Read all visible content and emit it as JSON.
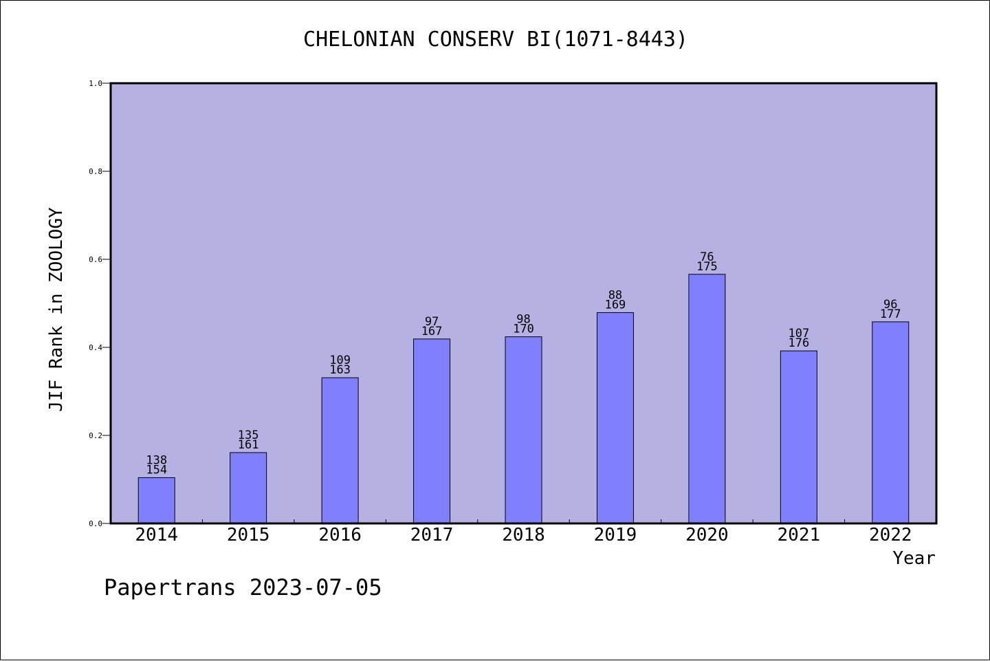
{
  "chart_data": {
    "type": "bar",
    "title": "CHELONIAN CONSERV BI(1071-8443)",
    "xlabel": "Year",
    "ylabel": "JIF Rank in ZOOLOGY",
    "ylim": [
      0,
      1.0
    ],
    "yticks": [
      "0.0",
      "0.2",
      "0.4",
      "0.6",
      "0.8",
      "1.0"
    ],
    "categories": [
      "2014",
      "2015",
      "2016",
      "2017",
      "2018",
      "2019",
      "2020",
      "2021",
      "2022"
    ],
    "values": [
      0.104,
      0.161,
      0.331,
      0.419,
      0.424,
      0.479,
      0.566,
      0.392,
      0.458
    ],
    "rank": [
      "138",
      "135",
      "109",
      "97",
      "98",
      "88",
      "76",
      "107",
      "96"
    ],
    "total": [
      "154",
      "161",
      "163",
      "167",
      "170",
      "169",
      "175",
      "176",
      "177"
    ],
    "grid": false,
    "legend": "none"
  },
  "footer": {
    "credit": "Papertrans 2023-07-05"
  },
  "colors": {
    "plot_bg": "#b6b1e3",
    "bar_fill": "#8080ff",
    "axis": "#000000"
  }
}
